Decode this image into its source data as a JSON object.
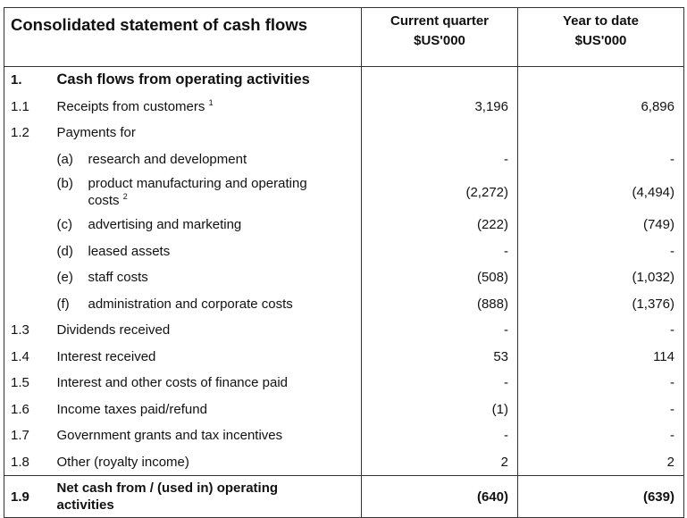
{
  "header": {
    "title": "Consolidated statement of cash flows",
    "current_quarter": [
      "Current quarter",
      "$US'000"
    ],
    "year_to_date": [
      "Year to date",
      "$US'000"
    ]
  },
  "section": {
    "number": "1.",
    "label": "Cash flows from operating activities"
  },
  "rows": {
    "r1_1": {
      "number": "1.1",
      "label": "Receipts from customers",
      "note": "1",
      "current": "3,196",
      "ytd": "6,896"
    },
    "r1_2": {
      "number": "1.2",
      "label": "Payments for",
      "current": "",
      "ytd": ""
    },
    "r1_2a": {
      "prefix": "(a)",
      "label": "research and development",
      "current": "-",
      "ytd": "-"
    },
    "r1_2b": {
      "prefix": "(b)",
      "label_line1": "product manufacturing and operating",
      "label_line2": "costs",
      "note": "2",
      "current": "(2,272)",
      "ytd": "(4,494)"
    },
    "r1_2c": {
      "prefix": "(c)",
      "label": "advertising and marketing",
      "current": "(222)",
      "ytd": "(749)"
    },
    "r1_2d": {
      "prefix": "(d)",
      "label": "leased assets",
      "current": "-",
      "ytd": "-"
    },
    "r1_2e": {
      "prefix": "(e)",
      "label": "staff costs",
      "current": "(508)",
      "ytd": "(1,032)"
    },
    "r1_2f": {
      "prefix": "(f)",
      "label": "administration and corporate costs",
      "current": "(888)",
      "ytd": "(1,376)"
    },
    "r1_3": {
      "number": "1.3",
      "label": "Dividends received",
      "current": "-",
      "ytd": "-"
    },
    "r1_4": {
      "number": "1.4",
      "label": "Interest received",
      "current": "53",
      "ytd": "114"
    },
    "r1_5": {
      "number": "1.5",
      "label": "Interest and other costs of finance paid",
      "current": "-",
      "ytd": "-"
    },
    "r1_6": {
      "number": "1.6",
      "label": "Income taxes paid/refund",
      "current": "(1)",
      "ytd": "-"
    },
    "r1_7": {
      "number": "1.7",
      "label": "Government grants and tax incentives",
      "current": "-",
      "ytd": "-"
    },
    "r1_8": {
      "number": "1.8",
      "label": "Other (royalty income)",
      "current": "2",
      "ytd": "2"
    }
  },
  "total": {
    "number": "1.9",
    "label_line1": "Net cash from / (used in) operating",
    "label_line2": "activities",
    "current": "(640)",
    "ytd": "(639)"
  }
}
